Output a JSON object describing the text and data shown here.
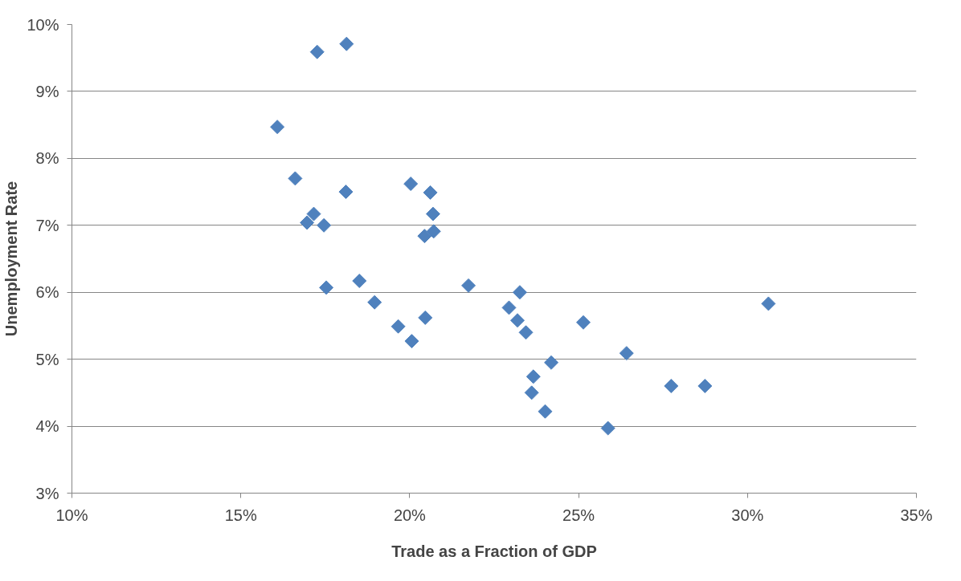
{
  "chart_data": {
    "type": "scatter",
    "xlabel": "Trade as a Fraction of GDP",
    "ylabel": "Unemployment Rate",
    "marker": "diamond",
    "grid": "y",
    "xlim": [
      10,
      35
    ],
    "ylim": [
      3,
      10
    ],
    "xticks": [
      {
        "value": 10,
        "label": "10%"
      },
      {
        "value": 15,
        "label": "15%"
      },
      {
        "value": 20,
        "label": "20%"
      },
      {
        "value": 25,
        "label": "25%"
      },
      {
        "value": 30,
        "label": "30%"
      },
      {
        "value": 35,
        "label": "35%"
      }
    ],
    "yticks": [
      {
        "value": 3,
        "label": "3%"
      },
      {
        "value": 4,
        "label": "4%"
      },
      {
        "value": 5,
        "label": "5%"
      },
      {
        "value": 6,
        "label": "6%"
      },
      {
        "value": 7,
        "label": "7%"
      },
      {
        "value": 8,
        "label": "8%"
      },
      {
        "value": 9,
        "label": "9%"
      },
      {
        "value": 10,
        "label": "10%"
      }
    ],
    "series": [
      {
        "color": "#4f81bd",
        "x": [
          17.26,
          18.13,
          16.08,
          16.61,
          18.11,
          17.16,
          16.96,
          17.46,
          17.53,
          18.51,
          18.96,
          19.66,
          20.06,
          20.46,
          20.03,
          20.61,
          20.69,
          20.71,
          20.44,
          21.74,
          22.94,
          23.26,
          23.19,
          23.44,
          23.66,
          23.61,
          24.19,
          24.01,
          25.14,
          25.87,
          26.42,
          27.74,
          28.74,
          30.62
        ],
        "values": [
          9.59,
          9.71,
          8.47,
          7.7,
          7.5,
          7.17,
          7.04,
          7.0,
          6.07,
          6.17,
          5.85,
          5.49,
          5.27,
          5.62,
          7.62,
          7.49,
          7.17,
          6.91,
          6.84,
          6.1,
          5.77,
          6.0,
          5.58,
          5.4,
          4.74,
          4.5,
          4.95,
          4.22,
          5.55,
          3.97,
          5.09,
          4.6,
          4.6,
          5.83
        ]
      }
    ]
  }
}
